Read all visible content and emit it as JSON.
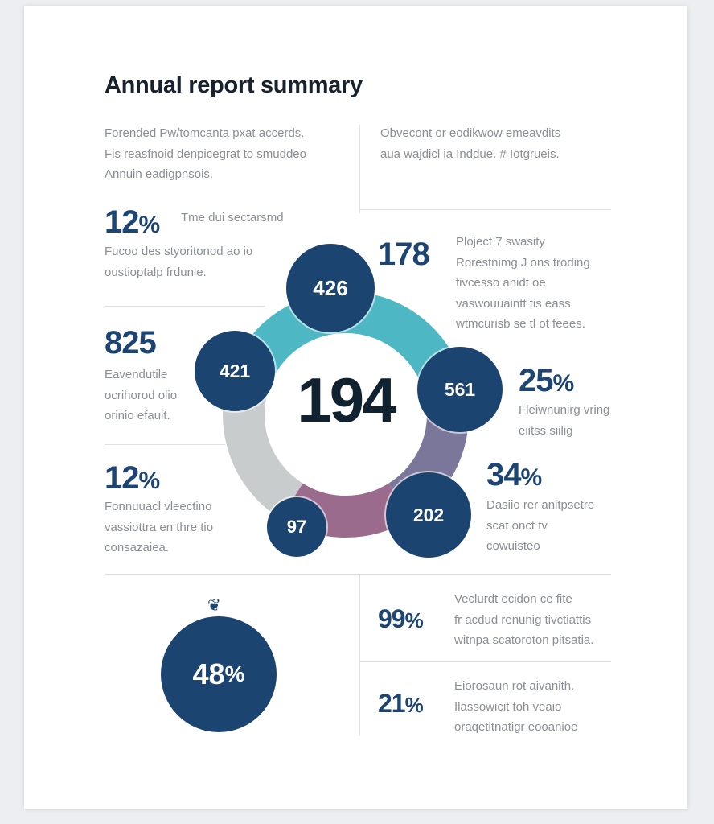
{
  "title": "Annual report summary",
  "intro_left": [
    "Forended Pw/tomcanta pxat accerds.",
    "Fis reasfnoid denpicegrat to smuddeo",
    "Annuin eadigpnsois."
  ],
  "intro_right": [
    "Obvecont or eodikwow emeavdits",
    "aua wajdicl ia Inddue. # Iotgrueis."
  ],
  "stats_left": [
    {
      "value": "12",
      "unit": "%",
      "caption": "Tme dui sectarsmd",
      "lines": [
        "Fucoo des styoritonod ao io",
        "oustioptalp frdunie."
      ]
    },
    {
      "value": "825",
      "unit": "",
      "lines": [
        "Eavendutile",
        "ocrihorod olio",
        "orinio efauit."
      ]
    },
    {
      "value": "12",
      "unit": "%",
      "lines": [
        "Fonnuuacl vleectino",
        "vassiottra en thre tio",
        "consazaiea."
      ]
    }
  ],
  "stats_right": [
    {
      "value": "178",
      "unit": "",
      "lines": [
        "Ploject 7 swasity",
        "Rorestnimg J ons troding",
        "fivcesso anidt oe",
        "vaswouuaintt tis eass",
        "wtmcurisb se tl ot feees."
      ]
    },
    {
      "value": "25",
      "unit": "%",
      "lines": [
        "Fleiwnunirg vring",
        "eiitss siilig"
      ]
    },
    {
      "value": "34",
      "unit": "%",
      "lines": [
        "Dasiio rer anitpsetre",
        "scat onct tv",
        "cowuisteo"
      ]
    }
  ],
  "donut": {
    "center_value": "194",
    "segments": [
      {
        "color": "#4db8c4",
        "start_deg": -62,
        "end_deg": 72
      },
      {
        "color": "#7b779a",
        "start_deg": 72,
        "end_deg": 148
      },
      {
        "color": "#9a6b8c",
        "start_deg": 148,
        "end_deg": 212
      },
      {
        "color": "#c9cccd",
        "start_deg": 212,
        "end_deg": 298
      }
    ],
    "bubbles": [
      "426",
      "421",
      "561",
      "202",
      "97"
    ]
  },
  "bottom_left": {
    "icon": "ornament-icon",
    "value": "48",
    "unit": "%"
  },
  "bottom_right": [
    {
      "value": "99",
      "unit": "%",
      "lines": [
        "Veclurdt ecidon ce fite",
        "fr acdud renunig tivctiattis",
        "witnpa scatoroton pitsatia."
      ]
    },
    {
      "value": "21",
      "unit": "%",
      "lines": [
        "Eiorosaun rot aivanith.",
        "Ilassowicit toh veaio",
        "oraqetitnatigr eooanioe"
      ]
    }
  ],
  "colors": {
    "navy": "#1b4471",
    "teal": "#4db8c4",
    "purple": "#7b779a",
    "mauve": "#9a6b8c",
    "gray": "#c9cccd"
  }
}
